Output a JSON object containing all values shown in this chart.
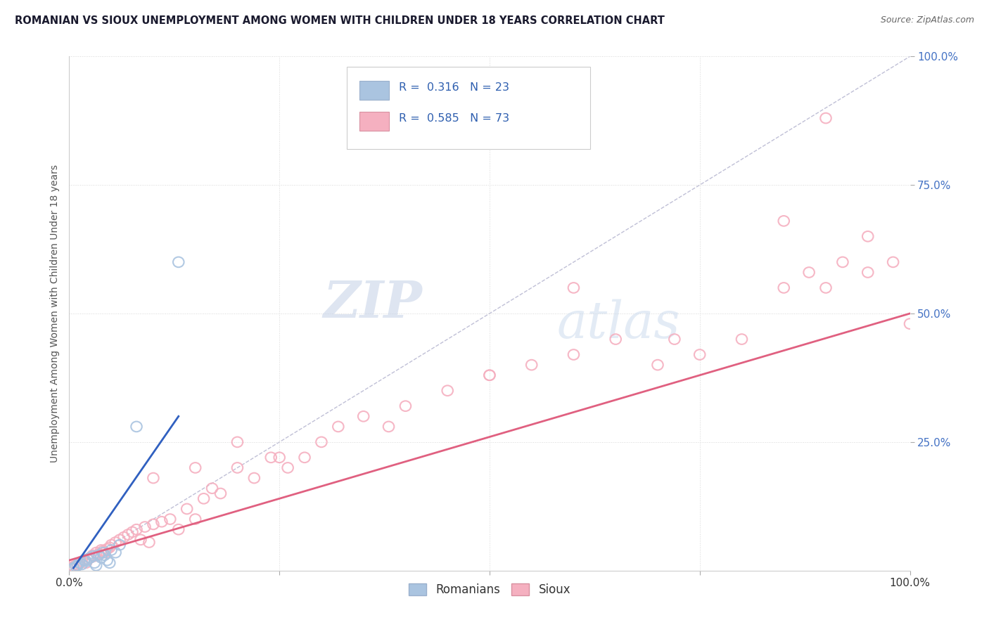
{
  "title": "ROMANIAN VS SIOUX UNEMPLOYMENT AMONG WOMEN WITH CHILDREN UNDER 18 YEARS CORRELATION CHART",
  "source": "Source: ZipAtlas.com",
  "ylabel": "Unemployment Among Women with Children Under 18 years",
  "xlim": [
    0,
    1.0
  ],
  "ylim": [
    0,
    1.0
  ],
  "xtick_labels": [
    "0.0%",
    "",
    "",
    "",
    "100.0%"
  ],
  "xtick_positions": [
    0,
    0.25,
    0.5,
    0.75,
    1.0
  ],
  "ytick_labels": [
    "25.0%",
    "50.0%",
    "75.0%",
    "100.0%"
  ],
  "ytick_positions": [
    0.25,
    0.5,
    0.75,
    1.0
  ],
  "romanian_R": "0.316",
  "romanian_N": "23",
  "sioux_R": "0.585",
  "sioux_N": "73",
  "romanian_color": "#aac4e0",
  "sioux_color": "#f5b0c0",
  "romanian_line_color": "#3060c0",
  "sioux_line_color": "#e06080",
  "diagonal_color": "#b0b0cc",
  "watermark_zip": "ZIP",
  "watermark_atlas": "atlas",
  "background_color": "#ffffff",
  "grid_color": "#d8d8d8",
  "romanian_scatter_x": [
    0.005,
    0.008,
    0.01,
    0.012,
    0.015,
    0.018,
    0.02,
    0.022,
    0.025,
    0.028,
    0.03,
    0.032,
    0.035,
    0.038,
    0.04,
    0.042,
    0.045,
    0.048,
    0.05,
    0.055,
    0.06,
    0.08,
    0.13
  ],
  "romanian_scatter_y": [
    0.005,
    0.008,
    0.01,
    0.015,
    0.012,
    0.02,
    0.018,
    0.022,
    0.025,
    0.028,
    0.015,
    0.01,
    0.03,
    0.025,
    0.035,
    0.03,
    0.02,
    0.015,
    0.04,
    0.035,
    0.05,
    0.28,
    0.6
  ],
  "sioux_scatter_x": [
    0.002,
    0.005,
    0.008,
    0.01,
    0.012,
    0.015,
    0.018,
    0.02,
    0.022,
    0.025,
    0.028,
    0.03,
    0.032,
    0.035,
    0.038,
    0.04,
    0.042,
    0.045,
    0.048,
    0.05,
    0.055,
    0.06,
    0.065,
    0.07,
    0.075,
    0.08,
    0.085,
    0.09,
    0.095,
    0.1,
    0.11,
    0.12,
    0.13,
    0.14,
    0.15,
    0.16,
    0.17,
    0.18,
    0.2,
    0.22,
    0.24,
    0.26,
    0.28,
    0.3,
    0.32,
    0.35,
    0.38,
    0.4,
    0.45,
    0.5,
    0.55,
    0.6,
    0.65,
    0.7,
    0.75,
    0.8,
    0.85,
    0.9,
    0.92,
    0.95,
    0.98,
    1.0,
    0.5,
    0.72,
    0.88,
    0.95,
    0.1,
    0.15,
    0.2,
    0.25,
    0.6,
    0.85,
    0.9
  ],
  "sioux_scatter_y": [
    0.005,
    0.008,
    0.01,
    0.012,
    0.015,
    0.018,
    0.02,
    0.015,
    0.022,
    0.025,
    0.03,
    0.028,
    0.035,
    0.032,
    0.04,
    0.038,
    0.035,
    0.042,
    0.045,
    0.05,
    0.055,
    0.06,
    0.065,
    0.07,
    0.075,
    0.08,
    0.06,
    0.085,
    0.055,
    0.09,
    0.095,
    0.1,
    0.08,
    0.12,
    0.1,
    0.14,
    0.16,
    0.15,
    0.2,
    0.18,
    0.22,
    0.2,
    0.22,
    0.25,
    0.28,
    0.3,
    0.28,
    0.32,
    0.35,
    0.38,
    0.4,
    0.42,
    0.45,
    0.4,
    0.42,
    0.45,
    0.55,
    0.55,
    0.6,
    0.58,
    0.6,
    0.48,
    0.38,
    0.45,
    0.58,
    0.65,
    0.18,
    0.2,
    0.25,
    0.22,
    0.55,
    0.68,
    0.88
  ],
  "sioux_line_x": [
    0.0,
    1.0
  ],
  "sioux_line_y": [
    0.02,
    0.5
  ],
  "romanian_line_x": [
    0.005,
    0.13
  ],
  "romanian_line_y": [
    0.005,
    0.3
  ]
}
